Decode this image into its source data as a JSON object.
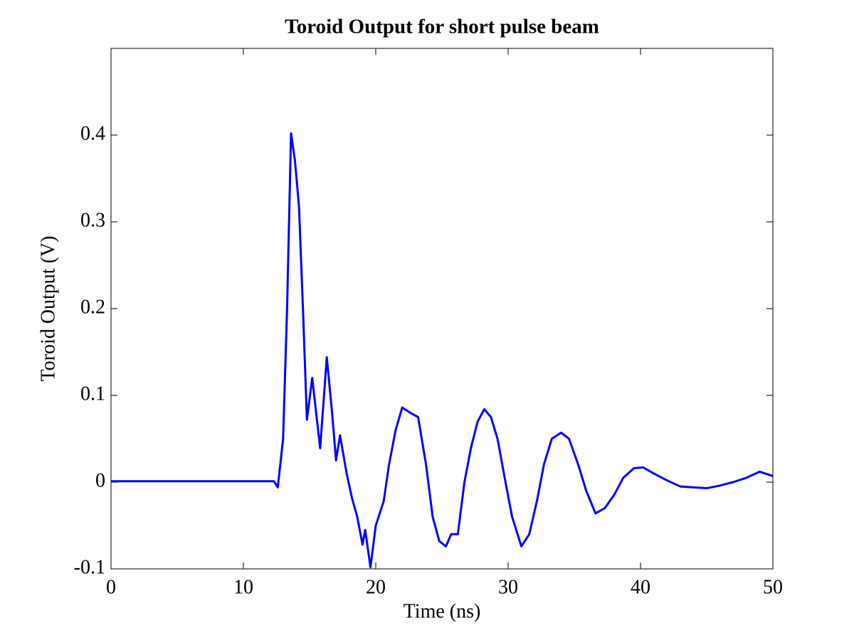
{
  "chart_data": {
    "type": "line",
    "title": "Toroid Output for short pulse beam",
    "xlabel": "Time (ns)",
    "ylabel": "Toroid Output (V)",
    "xlim": [
      0,
      50
    ],
    "xticks": [
      0,
      10,
      20,
      30,
      40,
      50
    ],
    "ylim": [
      -0.1,
      0.5
    ],
    "yticks": [
      -0.1,
      0,
      0.1,
      0.2,
      0.3,
      0.4
    ],
    "grid": false,
    "x": [
      0,
      5,
      10,
      12.3,
      12.6,
      13.0,
      13.3,
      13.6,
      13.9,
      14.2,
      14.5,
      14.8,
      15.2,
      15.8,
      16.3,
      16.7,
      17.0,
      17.3,
      17.8,
      18.2,
      18.6,
      19.0,
      19.2,
      19.6,
      20.0,
      20.6,
      21.0,
      21.5,
      22.0,
      22.6,
      23.2,
      23.8,
      24.3,
      24.8,
      25.3,
      25.7,
      26.2,
      26.7,
      27.2,
      27.7,
      28.2,
      28.7,
      29.2,
      29.8,
      30.3,
      31.0,
      31.6,
      32.2,
      32.7,
      33.3,
      34.0,
      34.6,
      35.3,
      35.9,
      36.6,
      37.3,
      38.0,
      38.7,
      39.5,
      40.2,
      41.0,
      42.0,
      43.0,
      44.0,
      45.0,
      46.0,
      47.0,
      48.0,
      49.0,
      50.0
    ],
    "series": [
      {
        "name": "Toroid Output",
        "color": "#0000ff",
        "values": [
          0.001,
          0.001,
          0.001,
          0.001,
          -0.006,
          0.05,
          0.2,
          0.402,
          0.37,
          0.318,
          0.2,
          0.072,
          0.12,
          0.039,
          0.144,
          0.08,
          0.025,
          0.054,
          0.01,
          -0.018,
          -0.04,
          -0.072,
          -0.055,
          -0.098,
          -0.05,
          -0.022,
          0.02,
          0.06,
          0.086,
          0.08,
          0.075,
          0.02,
          -0.04,
          -0.068,
          -0.074,
          -0.06,
          -0.06,
          0.0,
          0.04,
          0.07,
          0.084,
          0.075,
          0.05,
          0.0,
          -0.04,
          -0.074,
          -0.06,
          -0.02,
          0.02,
          0.05,
          0.057,
          0.05,
          0.02,
          -0.01,
          -0.036,
          -0.03,
          -0.015,
          0.005,
          0.016,
          0.017,
          0.01,
          0.002,
          -0.005,
          -0.006,
          -0.007,
          -0.004,
          0.0,
          0.005,
          0.012,
          0.007
        ]
      }
    ]
  }
}
